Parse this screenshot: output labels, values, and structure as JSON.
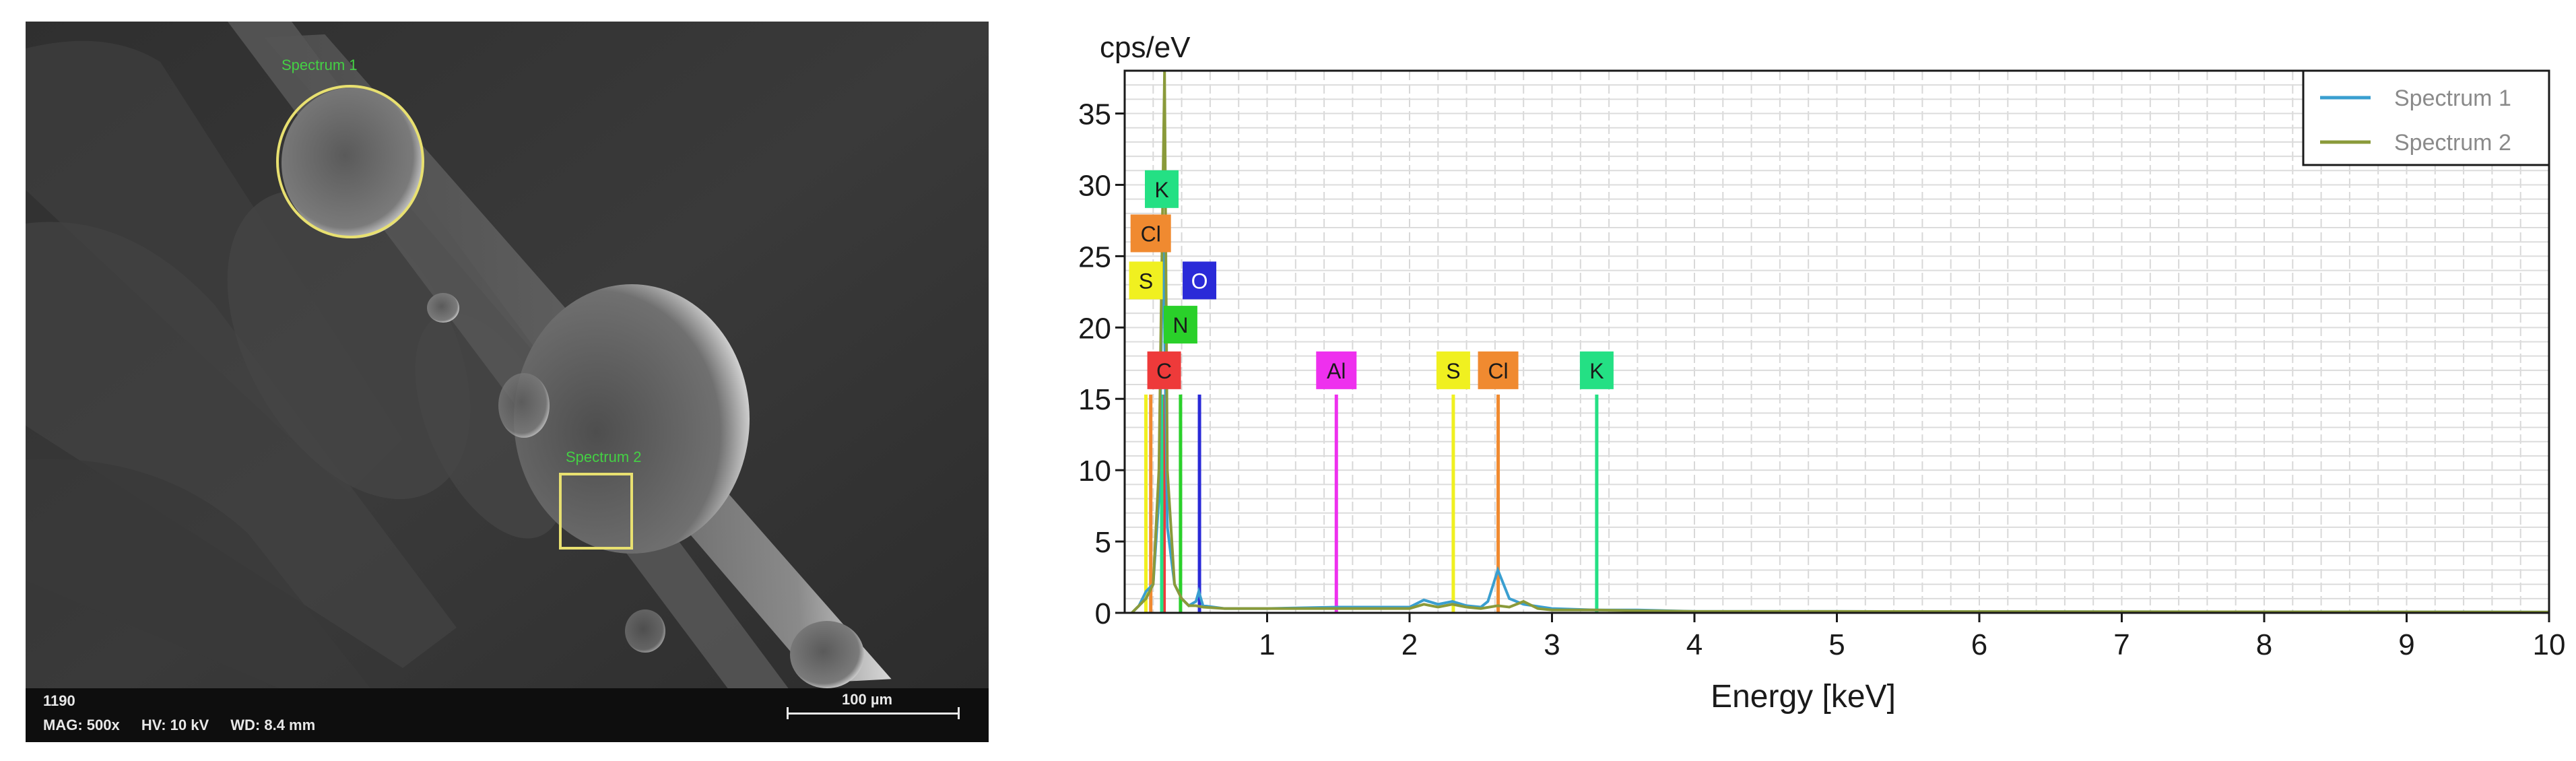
{
  "sem": {
    "image_id": "1190",
    "mag": "MAG: 500x",
    "hv": "HV: 10 kV",
    "wd": "WD: 8.4 mm",
    "scale_label": "100 µm",
    "regions": [
      {
        "label": "Spectrum 1",
        "shape": "circle",
        "color": "#e8e070"
      },
      {
        "label": "Spectrum 2",
        "shape": "rectangle",
        "color": "#e8e070"
      }
    ]
  },
  "chart_data": {
    "type": "line",
    "title": "",
    "xlabel": "Energy [keV]",
    "ylabel": "cps/eV",
    "xlim": [
      0,
      10
    ],
    "ylim": [
      0,
      38
    ],
    "xticks": [
      1,
      2,
      3,
      4,
      5,
      6,
      7,
      8,
      9,
      10
    ],
    "yticks": [
      0,
      5,
      10,
      15,
      20,
      25,
      30,
      35
    ],
    "grid": true,
    "legend_position": "top-right",
    "series": [
      {
        "name": "Spectrum 1",
        "color": "#3a9fd0",
        "points": [
          [
            0.05,
            0
          ],
          [
            0.1,
            0.5
          ],
          [
            0.15,
            1.5
          ],
          [
            0.2,
            2
          ],
          [
            0.24,
            8
          ],
          [
            0.27,
            27
          ],
          [
            0.3,
            6
          ],
          [
            0.35,
            2
          ],
          [
            0.4,
            1
          ],
          [
            0.45,
            0.5
          ],
          [
            0.5,
            0.8
          ],
          [
            0.52,
            1.5
          ],
          [
            0.55,
            0.5
          ],
          [
            0.7,
            0.3
          ],
          [
            1.0,
            0.3
          ],
          [
            1.5,
            0.4
          ],
          [
            2.0,
            0.4
          ],
          [
            2.1,
            0.9
          ],
          [
            2.2,
            0.6
          ],
          [
            2.3,
            0.8
          ],
          [
            2.4,
            0.5
          ],
          [
            2.5,
            0.4
          ],
          [
            2.55,
            0.8
          ],
          [
            2.62,
            3
          ],
          [
            2.7,
            1
          ],
          [
            2.8,
            0.6
          ],
          [
            3.0,
            0.3
          ],
          [
            3.3,
            0.2
          ],
          [
            3.6,
            0.2
          ],
          [
            4.0,
            0.1
          ],
          [
            5.0,
            0.1
          ],
          [
            10.0,
            0.05
          ]
        ]
      },
      {
        "name": "Spectrum 2",
        "color": "#8a9a3a",
        "points": [
          [
            0.05,
            0
          ],
          [
            0.1,
            0.5
          ],
          [
            0.15,
            1
          ],
          [
            0.2,
            2
          ],
          [
            0.24,
            10
          ],
          [
            0.28,
            38
          ],
          [
            0.3,
            10
          ],
          [
            0.35,
            2
          ],
          [
            0.4,
            1
          ],
          [
            0.45,
            0.5
          ],
          [
            0.5,
            0.5
          ],
          [
            0.55,
            0.4
          ],
          [
            0.7,
            0.3
          ],
          [
            1.0,
            0.3
          ],
          [
            1.5,
            0.3
          ],
          [
            2.0,
            0.3
          ],
          [
            2.1,
            0.6
          ],
          [
            2.2,
            0.4
          ],
          [
            2.3,
            0.6
          ],
          [
            2.4,
            0.4
          ],
          [
            2.5,
            0.3
          ],
          [
            2.62,
            0.5
          ],
          [
            2.7,
            0.4
          ],
          [
            2.8,
            0.8
          ],
          [
            2.9,
            0.3
          ],
          [
            3.0,
            0.2
          ],
          [
            3.3,
            0.2
          ],
          [
            4.0,
            0.1
          ],
          [
            5.0,
            0.1
          ],
          [
            10.0,
            0.05
          ]
        ]
      }
    ],
    "element_markers": [
      {
        "element": "C",
        "energy": 0.277,
        "label_y": 17,
        "color": "#ee3a3a",
        "text_color": "#1a1a1a"
      },
      {
        "element": "N",
        "energy": 0.392,
        "label_y": 20.2,
        "color": "#2ad02a",
        "text_color": "#1a1a1a"
      },
      {
        "element": "O",
        "energy": 0.525,
        "label_y": 23.3,
        "color": "#2a2ad8",
        "text_color": "#ffffff"
      },
      {
        "element": "S",
        "energy": 0.149,
        "label_y": 23.3,
        "color": "#f0f020",
        "text_color": "#1a1a1a"
      },
      {
        "element": "Cl",
        "energy": 0.183,
        "label_y": 26.6,
        "color": "#f08a30",
        "text_color": "#1a1a1a"
      },
      {
        "element": "K",
        "energy": 0.26,
        "label_y": 29.7,
        "color": "#24e084",
        "text_color": "#1a1a1a"
      },
      {
        "element": "Al",
        "energy": 1.486,
        "label_y": 17,
        "color": "#ee30ee",
        "text_color": "#1a1a1a"
      },
      {
        "element": "S",
        "energy": 2.307,
        "label_y": 17,
        "color": "#f0f020",
        "text_color": "#1a1a1a"
      },
      {
        "element": "Cl",
        "energy": 2.622,
        "label_y": 17,
        "color": "#f08a30",
        "text_color": "#1a1a1a"
      },
      {
        "element": "K",
        "energy": 3.314,
        "label_y": 17,
        "color": "#24e084",
        "text_color": "#1a1a1a"
      }
    ]
  }
}
